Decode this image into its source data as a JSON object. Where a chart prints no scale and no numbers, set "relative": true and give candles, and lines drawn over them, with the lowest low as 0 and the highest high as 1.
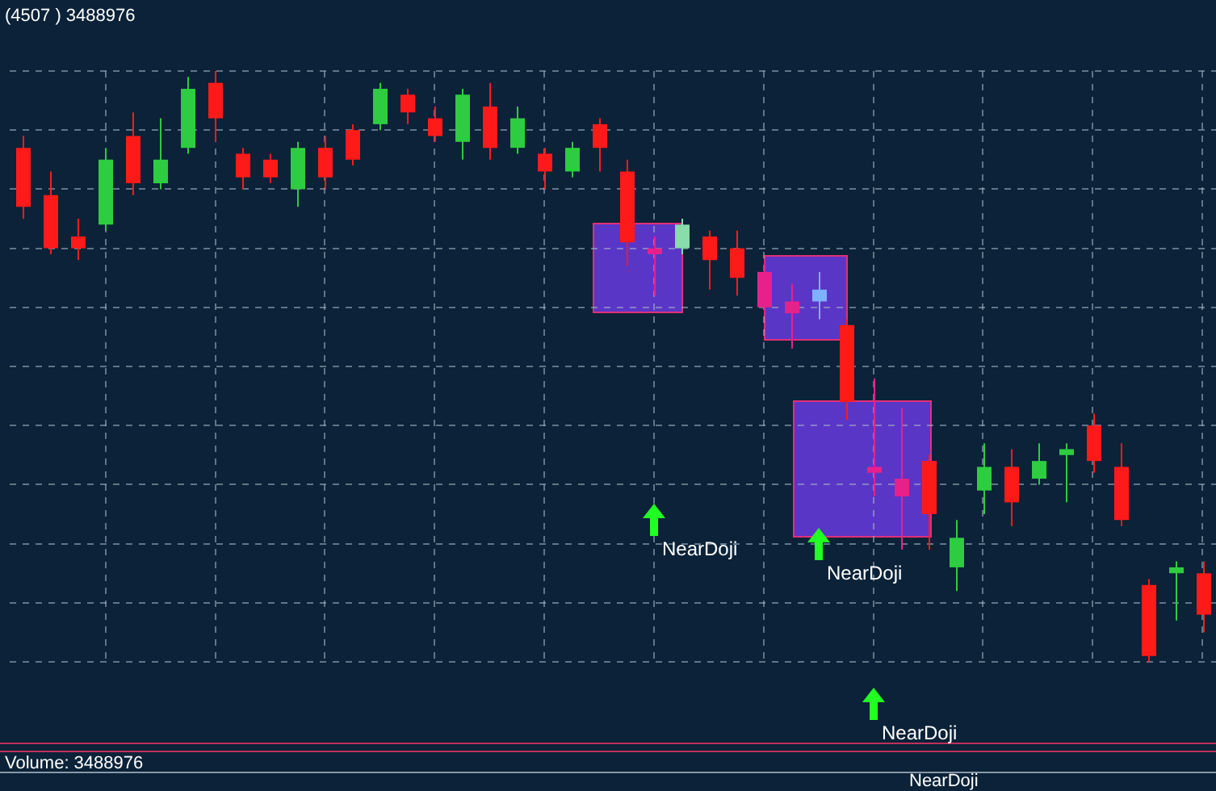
{
  "chart_data": {
    "type": "candlestick",
    "title": "(4507 ) 3488976",
    "relative": true,
    "categories": [
      null,
      null,
      null,
      null,
      null,
      null,
      null,
      null,
      null,
      null,
      null,
      null,
      null,
      null,
      null,
      null,
      null,
      null,
      null,
      null,
      null,
      null,
      null,
      null,
      null,
      null,
      null,
      null,
      null,
      null,
      null,
      null,
      null,
      null,
      null,
      null,
      null,
      null,
      null,
      null,
      null,
      null,
      null,
      null
    ],
    "ohlc": [
      [
        0.87,
        0.89,
        0.75,
        0.77
      ],
      [
        0.79,
        0.83,
        0.69,
        0.7
      ],
      [
        0.72,
        0.75,
        0.68,
        0.7
      ],
      [
        0.74,
        0.87,
        0.73,
        0.85
      ],
      [
        0.89,
        0.93,
        0.79,
        0.81
      ],
      [
        0.81,
        0.92,
        0.8,
        0.85
      ],
      [
        0.87,
        0.99,
        0.86,
        0.97
      ],
      [
        0.98,
        1.0,
        0.88,
        0.92
      ],
      [
        0.86,
        0.87,
        0.8,
        0.82
      ],
      [
        0.85,
        0.86,
        0.81,
        0.82
      ],
      [
        0.8,
        0.88,
        0.77,
        0.87
      ],
      [
        0.87,
        0.89,
        0.8,
        0.82
      ],
      [
        0.9,
        0.91,
        0.84,
        0.85
      ],
      [
        0.91,
        0.98,
        0.9,
        0.97
      ],
      [
        0.96,
        0.97,
        0.91,
        0.93
      ],
      [
        0.92,
        0.94,
        0.88,
        0.89
      ],
      [
        0.88,
        0.97,
        0.85,
        0.96
      ],
      [
        0.94,
        0.98,
        0.85,
        0.87
      ],
      [
        0.87,
        0.94,
        0.86,
        0.92
      ],
      [
        0.86,
        0.87,
        0.8,
        0.83
      ],
      [
        0.83,
        0.88,
        0.82,
        0.87
      ],
      [
        0.91,
        0.92,
        0.83,
        0.87
      ],
      [
        0.83,
        0.85,
        0.67,
        0.71
      ],
      [
        0.7,
        0.72,
        0.62,
        0.69
      ],
      [
        0.7,
        0.75,
        0.69,
        0.74
      ],
      [
        0.72,
        0.73,
        0.63,
        0.68
      ],
      [
        0.7,
        0.73,
        0.62,
        0.65
      ],
      [
        0.66,
        0.68,
        0.59,
        0.6
      ],
      [
        0.61,
        0.64,
        0.53,
        0.59
      ],
      [
        0.61,
        0.66,
        0.58,
        0.63
      ],
      [
        0.57,
        0.58,
        0.41,
        0.44
      ],
      [
        0.33,
        0.48,
        0.28,
        0.32
      ],
      [
        0.31,
        0.43,
        0.19,
        0.28
      ],
      [
        0.34,
        0.35,
        0.19,
        0.25
      ],
      [
        0.16,
        0.24,
        0.12,
        0.21
      ],
      [
        0.29,
        0.37,
        0.25,
        0.33
      ],
      [
        0.33,
        0.36,
        0.23,
        0.27
      ],
      [
        0.31,
        0.37,
        0.3,
        0.34
      ],
      [
        0.35,
        0.37,
        0.27,
        0.36
      ],
      [
        0.4,
        0.42,
        0.32,
        0.34
      ],
      [
        0.33,
        0.37,
        0.23,
        0.24
      ],
      [
        0.13,
        0.14,
        0.0,
        0.01
      ],
      [
        0.15,
        0.17,
        0.07,
        0.16
      ],
      [
        0.15,
        0.17,
        0.05,
        0.08
      ]
    ],
    "colors": [
      "#ff1a1a",
      "#ff1a1a",
      "#ff1a1a",
      "#2ecc40",
      "#ff1a1a",
      "#2ecc40",
      "#2ecc40",
      "#ff1a1a",
      "#ff1a1a",
      "#ff1a1a",
      "#2ecc40",
      "#ff1a1a",
      "#ff1a1a",
      "#2ecc40",
      "#ff1a1a",
      "#ff1a1a",
      "#2ecc40",
      "#ff1a1a",
      "#2ecc40",
      "#ff1a1a",
      "#2ecc40",
      "#ff1a1a",
      "#ff1a1a",
      "#e8208c",
      "#88ddaa",
      "#ff1a1a",
      "#ff1a1a",
      "#e8208c",
      "#e8208c",
      "#7fb0ff",
      "#ff1a1a",
      "#e8208c",
      "#e8208c",
      "#ff1a1a",
      "#2ecc40",
      "#2ecc40",
      "#ff1a1a",
      "#2ecc40",
      "#2ecc40",
      "#ff1a1a",
      "#ff1a1a",
      "#ff1a1a",
      "#2ecc40",
      "#ff1a1a"
    ],
    "grid": true,
    "annotations": [
      "NearDoji",
      "NearDoji",
      "NearDoji",
      "Volume: 3488976",
      "NearDoji"
    ]
  }
}
